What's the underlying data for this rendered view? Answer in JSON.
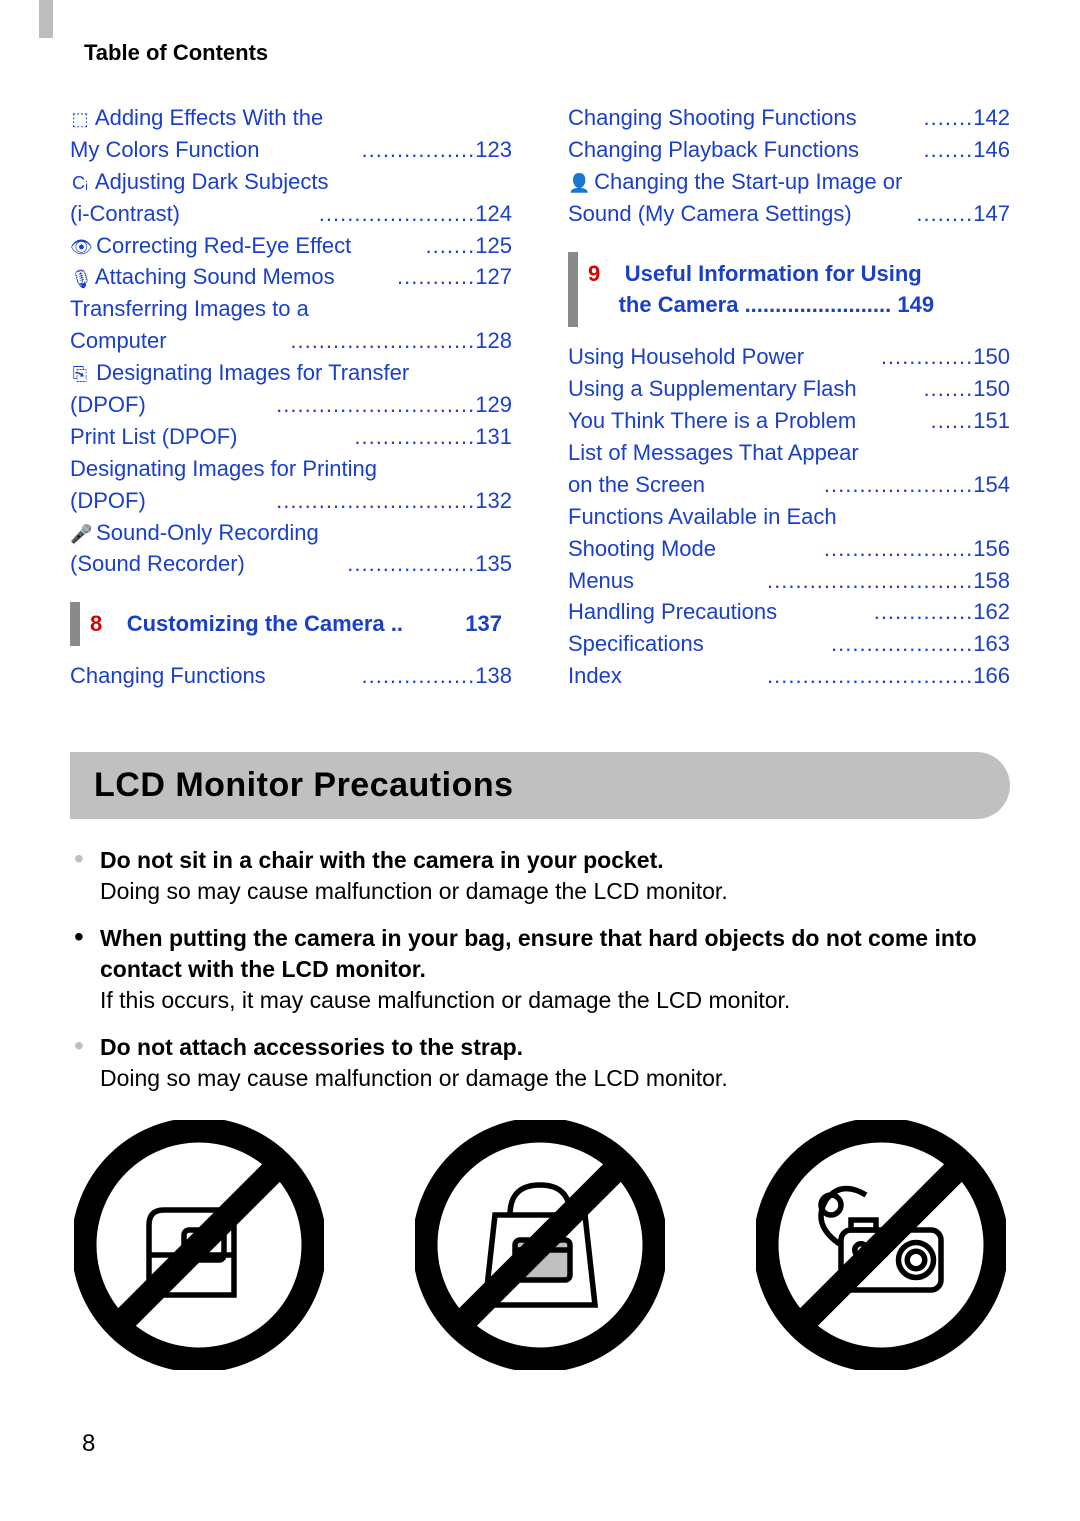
{
  "header": {
    "title": "Table of Contents"
  },
  "toc_left": [
    {
      "icon": "⬚",
      "text1": "Adding Effects With the",
      "text2": "My Colors Function",
      "page": "123"
    },
    {
      "icon": "Cᵢ",
      "text1": "Adjusting Dark Subjects",
      "text2": "(i-Contrast)",
      "page": "124"
    },
    {
      "icon": "👁",
      "text1": "Correcting Red-Eye Effect",
      "page": "125"
    },
    {
      "icon": "🎙",
      "text1": "Attaching Sound Memos",
      "page": "127"
    },
    {
      "text1": "Transferring Images to a",
      "text2": "Computer",
      "page": "128"
    },
    {
      "icon": "⎘",
      "text1": "Designating Images for Transfer",
      "text2": "(DPOF)",
      "page": "129"
    },
    {
      "text1": "Print List (DPOF)",
      "page": "131"
    },
    {
      "text1": "Designating Images for Printing",
      "text2": "(DPOF)",
      "page": "132"
    },
    {
      "icon": "🎤",
      "text1": "Sound-Only Recording",
      "text2": "(Sound Recorder)",
      "page": "135"
    }
  ],
  "chapter8": {
    "num": "8",
    "title": "Customizing the Camera",
    "page": "137"
  },
  "toc_left_after": [
    {
      "text1": "Changing Functions",
      "page": "138"
    }
  ],
  "toc_right_before": [
    {
      "text1": "Changing Shooting Functions",
      "page": "142"
    },
    {
      "text1": "Changing Playback Functions",
      "page": "146"
    },
    {
      "icon": "👤",
      "text1": "Changing the Start-up Image or",
      "text2": "Sound (My Camera Settings)",
      "page": "147"
    }
  ],
  "chapter9": {
    "num": "9",
    "title1": "Useful Information for Using",
    "title2": "the Camera",
    "page": "149"
  },
  "toc_right": [
    {
      "text1": "Using Household Power",
      "page": "150"
    },
    {
      "text1": "Using a Supplementary Flash",
      "page": "150"
    },
    {
      "text1": "You Think There is a Problem",
      "page": "151"
    },
    {
      "text1": "List of Messages That Appear",
      "text2": "on the Screen",
      "page": "154"
    },
    {
      "text1": "Functions Available in Each",
      "text2": "Shooting Mode",
      "page": "156"
    },
    {
      "text1": "Menus",
      "page": "158"
    },
    {
      "text1": "Handling Precautions",
      "page": "162"
    },
    {
      "text1": "Specifications",
      "page": "163"
    },
    {
      "text1": "Index",
      "page": "166"
    }
  ],
  "section_heading": "LCD Monitor Precautions",
  "precautions": [
    {
      "bold": "Do not sit in a chair with the camera in your pocket.",
      "body": "Doing so may cause malfunction or damage the LCD monitor.",
      "dot": "light"
    },
    {
      "bold": "When putting the camera in your bag, ensure that hard objects do not come into contact with the LCD monitor.",
      "body": "If this occurs, it may cause malfunction or damage the LCD monitor.",
      "dot": "dark"
    },
    {
      "bold": "Do not attach accessories to the strap.",
      "body": "Doing so may cause malfunction or damage the LCD monitor.",
      "dot": "light"
    }
  ],
  "page_number": "8",
  "colors": {
    "link": "#1a3fc9",
    "chapter_num": "#d80000",
    "section_bg": "#c0c0c0",
    "header_tab": "#bdbdbd"
  }
}
